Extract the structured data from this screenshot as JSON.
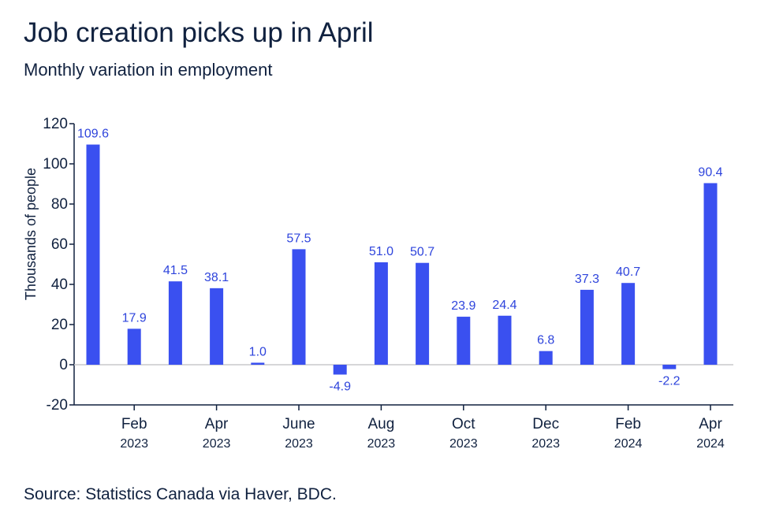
{
  "header": {
    "title": "Job creation picks up in April",
    "subtitle": "Monthly variation in employment"
  },
  "footer": {
    "source": "Source: Statistics Canada via Haver, BDC."
  },
  "colors": {
    "bar": "#3a50f0",
    "label": "#2e44dc",
    "text": "#10213f",
    "axis": "#10213f",
    "zero_line": "#c8c8cc"
  },
  "chart_data": {
    "type": "bar",
    "ylabel": "Thousands of people",
    "ylim": [
      -20,
      120
    ],
    "yticks": [
      -20,
      0,
      20,
      40,
      60,
      80,
      100,
      120
    ],
    "grid": false,
    "categories": [
      "Jan 2023",
      "Feb 2023",
      "Mar 2023",
      "Apr 2023",
      "May 2023",
      "June 2023",
      "Jul 2023",
      "Aug 2023",
      "Sep 2023",
      "Oct 2023",
      "Nov 2023",
      "Dec 2023",
      "Jan 2024",
      "Feb 2024",
      "Mar 2024",
      "Apr 2024"
    ],
    "values": [
      109.6,
      17.9,
      41.5,
      38.1,
      1.0,
      57.5,
      -4.9,
      51.0,
      50.7,
      23.9,
      24.4,
      6.8,
      37.3,
      40.7,
      -2.2,
      90.4
    ],
    "data_labels": [
      "109.6",
      "17.9",
      "41.5",
      "38.1",
      "1.0",
      "57.5",
      "-4.9",
      "51.0",
      "50.7",
      "23.9",
      "24.4",
      "6.8",
      "37.3",
      "40.7",
      "-2.2",
      "90.4"
    ],
    "xtick_labels": [
      {
        "index": 1,
        "month": "Feb",
        "year": "2023"
      },
      {
        "index": 3,
        "month": "Apr",
        "year": "2023"
      },
      {
        "index": 5,
        "month": "June",
        "year": "2023"
      },
      {
        "index": 7,
        "month": "Aug",
        "year": "2023"
      },
      {
        "index": 9,
        "month": "Oct",
        "year": "2023"
      },
      {
        "index": 11,
        "month": "Dec",
        "year": "2023"
      },
      {
        "index": 13,
        "month": "Feb",
        "year": "2024"
      },
      {
        "index": 15,
        "month": "Apr",
        "year": "2024"
      }
    ]
  }
}
